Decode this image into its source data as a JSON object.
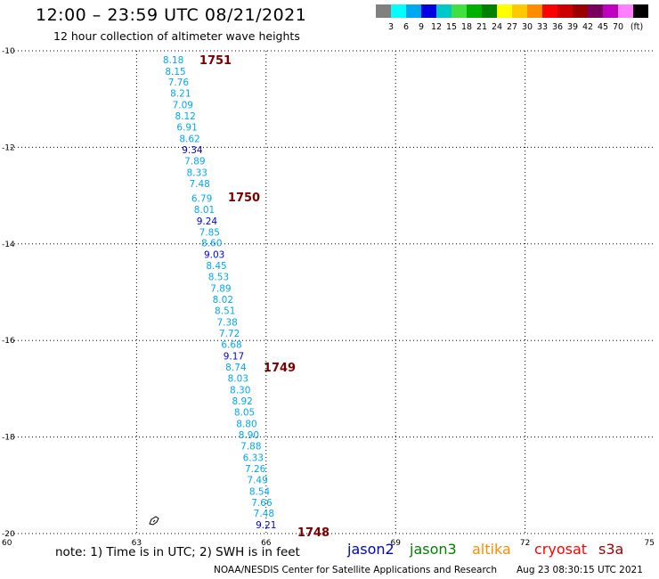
{
  "header": {
    "title": "12:00 – 23:59 UTC 08/21/2021",
    "subtitle": "12 hour collection of altimeter wave heights"
  },
  "legend": {
    "unit": "(ft)",
    "colors": [
      "#808080",
      "#00ffff",
      "#00a8f0",
      "#0000e0",
      "#00c8c8",
      "#40e040",
      "#00b000",
      "#008000",
      "#ffff00",
      "#ffc800",
      "#ff8c00",
      "#ff0000",
      "#cc0000",
      "#9b0000",
      "#7a0060",
      "#c000c0",
      "#ff80ff",
      "#000000"
    ],
    "labels": [
      "3",
      "6",
      "9",
      "12",
      "15",
      "18",
      "21",
      "24",
      "27",
      "30",
      "33",
      "36",
      "39",
      "42",
      "45",
      "70"
    ]
  },
  "axes": {
    "lon_ticks": [
      "60",
      "63",
      "66",
      "69",
      "72",
      "75"
    ],
    "lat_ticks": [
      "-10",
      "-12",
      "-14",
      "-16",
      "-18",
      "-20"
    ]
  },
  "time_labels": [
    "1751",
    "1750",
    "1749",
    "1748"
  ],
  "observations": [
    {
      "value": "8.18",
      "lon": 63.85,
      "lat": -10.18,
      "color": "#00a8f0"
    },
    {
      "value": "8.15",
      "lon": 63.9,
      "lat": -10.42,
      "color": "#00a8f0"
    },
    {
      "value": "7.76",
      "lon": 63.97,
      "lat": -10.65,
      "color": "#00a8f0"
    },
    {
      "value": "8.21",
      "lon": 64.02,
      "lat": -10.88,
      "color": "#00a8f0"
    },
    {
      "value": "7.09",
      "lon": 64.07,
      "lat": -11.12,
      "color": "#00a8f0"
    },
    {
      "value": "8.12",
      "lon": 64.13,
      "lat": -11.35,
      "color": "#00a8f0"
    },
    {
      "value": "6.91",
      "lon": 64.17,
      "lat": -11.58,
      "color": "#00a8f0"
    },
    {
      "value": "8.62",
      "lon": 64.23,
      "lat": -11.82,
      "color": "#00a8f0"
    },
    {
      "value": "9.34",
      "lon": 64.29,
      "lat": -12.05,
      "color": "#0000e0"
    },
    {
      "value": "7.89",
      "lon": 64.35,
      "lat": -12.28,
      "color": "#00a8f0"
    },
    {
      "value": "8.33",
      "lon": 64.4,
      "lat": -12.52,
      "color": "#00a8f0"
    },
    {
      "value": "7.48",
      "lon": 64.46,
      "lat": -12.75,
      "color": "#00a8f0"
    },
    {
      "value": "6.79",
      "lon": 64.51,
      "lat": -13.05,
      "color": "#00a8f0"
    },
    {
      "value": "8.01",
      "lon": 64.57,
      "lat": -13.28,
      "color": "#00a8f0"
    },
    {
      "value": "9.24",
      "lon": 64.63,
      "lat": -13.52,
      "color": "#0000e0"
    },
    {
      "value": "7.85",
      "lon": 64.69,
      "lat": -13.75,
      "color": "#00a8f0"
    },
    {
      "value": "8.60",
      "lon": 64.74,
      "lat": -13.98,
      "color": "#00a8f0"
    },
    {
      "value": "9.03",
      "lon": 64.8,
      "lat": -14.22,
      "color": "#0000e0"
    },
    {
      "value": "8.45",
      "lon": 64.85,
      "lat": -14.45,
      "color": "#00a8f0"
    },
    {
      "value": "8.53",
      "lon": 64.9,
      "lat": -14.68,
      "color": "#00a8f0"
    },
    {
      "value": "7.89",
      "lon": 64.95,
      "lat": -14.92,
      "color": "#00a8f0"
    },
    {
      "value": "8.02",
      "lon": 65.0,
      "lat": -15.15,
      "color": "#00a8f0"
    },
    {
      "value": "8.51",
      "lon": 65.05,
      "lat": -15.38,
      "color": "#00a8f0"
    },
    {
      "value": "7.38",
      "lon": 65.1,
      "lat": -15.62,
      "color": "#00a8f0"
    },
    {
      "value": "7.72",
      "lon": 65.15,
      "lat": -15.85,
      "color": "#00a8f0"
    },
    {
      "value": "6.68",
      "lon": 65.2,
      "lat": -16.08,
      "color": "#00a8f0"
    },
    {
      "value": "9.17",
      "lon": 65.25,
      "lat": -16.32,
      "color": "#0000e0"
    },
    {
      "value": "8.74",
      "lon": 65.3,
      "lat": -16.55,
      "color": "#00a8f0"
    },
    {
      "value": "8.03",
      "lon": 65.35,
      "lat": -16.78,
      "color": "#00a8f0"
    },
    {
      "value": "8.30",
      "lon": 65.4,
      "lat": -17.02,
      "color": "#00a8f0"
    },
    {
      "value": "8.92",
      "lon": 65.45,
      "lat": -17.25,
      "color": "#00a8f0"
    },
    {
      "value": "8.05",
      "lon": 65.5,
      "lat": -17.48,
      "color": "#00a8f0"
    },
    {
      "value": "8.80",
      "lon": 65.55,
      "lat": -17.72,
      "color": "#00a8f0"
    },
    {
      "value": "8.90",
      "lon": 65.6,
      "lat": -17.95,
      "color": "#00a8f0"
    },
    {
      "value": "7.88",
      "lon": 65.65,
      "lat": -18.18,
      "color": "#00a8f0"
    },
    {
      "value": "6.33",
      "lon": 65.7,
      "lat": -18.42,
      "color": "#00a8f0"
    },
    {
      "value": "7.26",
      "lon": 65.75,
      "lat": -18.65,
      "color": "#00a8f0"
    },
    {
      "value": "7.49",
      "lon": 65.8,
      "lat": -18.88,
      "color": "#00a8f0"
    },
    {
      "value": "8.54",
      "lon": 65.85,
      "lat": -19.12,
      "color": "#00a8f0"
    },
    {
      "value": "7.66",
      "lon": 65.9,
      "lat": -19.35,
      "color": "#00a8f0"
    },
    {
      "value": "7.48",
      "lon": 65.95,
      "lat": -19.58,
      "color": "#00a8f0"
    },
    {
      "value": "9.21",
      "lon": 66.0,
      "lat": -19.82,
      "color": "#0000e0"
    }
  ],
  "footer": {
    "note": "note:  1) Time is in UTC;  2) SWH is in feet",
    "satellites": [
      {
        "name": "jason2",
        "color": "#0000cc"
      },
      {
        "name": "jason3",
        "color": "#008000"
      },
      {
        "name": "altika",
        "color": "#ff8c00"
      },
      {
        "name": "cryosat",
        "color": "#ff0000"
      },
      {
        "name": "s3a",
        "color": "#990000"
      }
    ],
    "credit": "NOAA/NESDIS Center for Satellite Applications and Research",
    "timestamp": "Aug 23 08:30:15 UTC 2021"
  }
}
